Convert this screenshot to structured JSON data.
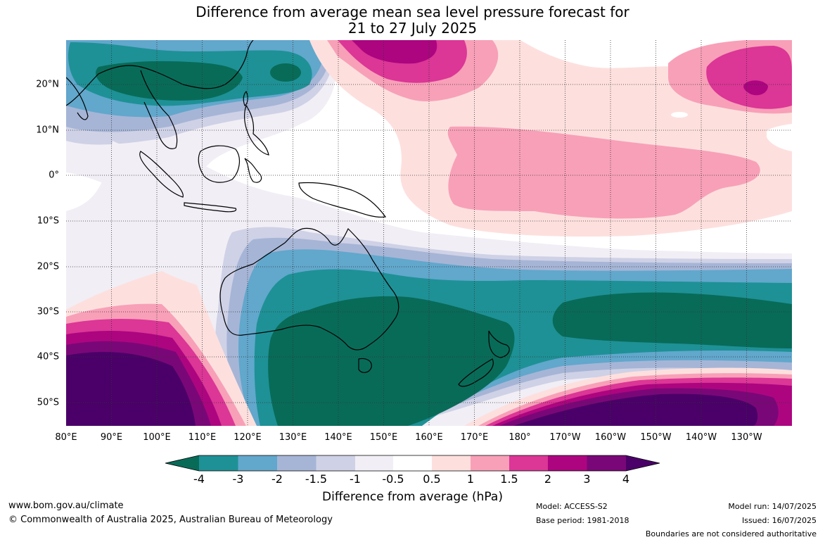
{
  "title_line1": "Difference from average mean sea level pressure forecast for",
  "title_line2": "21 to 27 July 2025",
  "lon_labels": [
    "80°E",
    "90°E",
    "100°E",
    "110°E",
    "120°E",
    "130°E",
    "140°E",
    "150°E",
    "160°E",
    "170°E",
    "180°",
    "170°W",
    "160°W",
    "150°W",
    "140°W",
    "130°W"
  ],
  "lat_labels": [
    "20°N",
    "10°N",
    "0°",
    "10°S",
    "20°S",
    "30°S",
    "40°S",
    "50°S"
  ],
  "colorbar": {
    "title": "Difference from average (hPa)",
    "tick_labels": [
      "-4",
      "-3",
      "-2",
      "-1.5",
      "-1",
      "-0.5",
      "0.5",
      "1",
      "1.5",
      "2",
      "3",
      "4"
    ],
    "colors": [
      "#086b58",
      "#1e9196",
      "#62a7cc",
      "#a6b5d6",
      "#cfd1e6",
      "#f1eef5",
      "#ffffff",
      "#fde0de",
      "#f8a0b8",
      "#dc3696",
      "#ad0580",
      "#7a0778",
      "#4a0068"
    ]
  },
  "footer": {
    "website": "www.bom.gov.au/climate",
    "copyright": "© Commonwealth of Australia 2025, Australian Bureau of Meteorology",
    "model": "Model: ACCESS-S2",
    "base_period": "Base period: 1981-2018",
    "model_run": "Model run: 14/07/2025",
    "issued": "Issued: 16/07/2025",
    "disclaimer": "Boundaries are not considered authoritative"
  }
}
